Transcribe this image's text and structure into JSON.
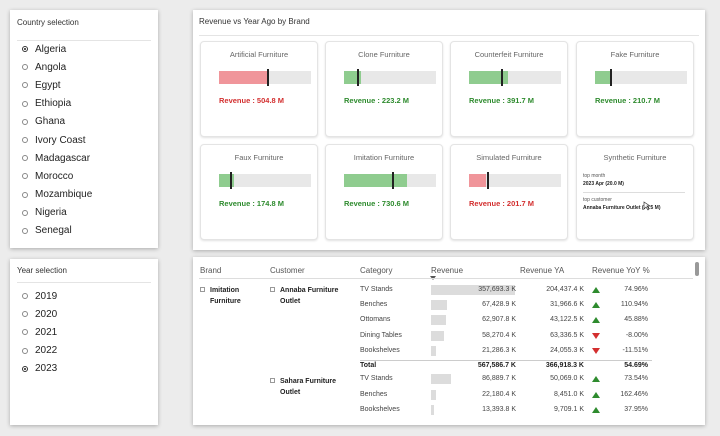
{
  "country_slicer": {
    "title": "Country selection",
    "items": [
      "Algeria",
      "Angola",
      "Egypt",
      "Ethiopia",
      "Ghana",
      "Ivory Coast",
      "Madagascar",
      "Morocco",
      "Mozambique",
      "Nigeria",
      "Senegal"
    ],
    "selected": "Algeria"
  },
  "year_slicer": {
    "title": "Year selection",
    "items": [
      "2019",
      "2020",
      "2021",
      "2022",
      "2023"
    ],
    "selected": "2023"
  },
  "brand_panel": {
    "title": "Revenue vs Year Ago by Brand",
    "cards": [
      {
        "name": "Artificial Furniture",
        "value_text": "Revenue : 504.8 M",
        "status": "down",
        "fill_fraction": 0.53,
        "target_fraction": 0.53
      },
      {
        "name": "Clone Furniture",
        "value_text": "Revenue : 223.2 M",
        "status": "up",
        "fill_fraction": 0.19,
        "target_fraction": 0.15
      },
      {
        "name": "Counterfeit Furniture",
        "value_text": "Revenue : 391.7 M",
        "status": "up",
        "fill_fraction": 0.42,
        "target_fraction": 0.36
      },
      {
        "name": "Fake Furniture",
        "value_text": "Revenue : 210.7 M",
        "status": "up",
        "fill_fraction": 0.19,
        "target_fraction": 0.17
      },
      {
        "name": "Faux Furniture",
        "value_text": "Revenue : 174.8 M",
        "status": "up",
        "fill_fraction": 0.16,
        "target_fraction": 0.13
      },
      {
        "name": "Imitation Furniture",
        "value_text": "Revenue : 730.6 M",
        "status": "up",
        "fill_fraction": 0.68,
        "target_fraction": 0.53
      },
      {
        "name": "Simulated Furniture",
        "value_text": "Revenue : 201.7 M",
        "status": "down",
        "fill_fraction": 0.18,
        "target_fraction": 0.21
      }
    ],
    "tooltip_card": {
      "name": "Synthetic Furniture",
      "top_month_label": "top month",
      "top_month_value": "2023 Apr (20.0 M)",
      "top_customer_label": "top customer",
      "top_customer_value": "Annaba Furniture Outlet (75.5 M)"
    }
  },
  "colors": {
    "up_bar": "#8fcc8f",
    "down_bar": "#f0959a",
    "up_text": "#2e8b2e",
    "down_text": "#d32f2f"
  },
  "matrix": {
    "headers": [
      "Brand",
      "Customer",
      "Category",
      "Revenue",
      "Revenue YA",
      "Revenue YoY %"
    ],
    "brand": "Imitation Furniture",
    "groups": [
      {
        "customer": "Annaba Furniture Outlet",
        "rows": [
          {
            "category": "TV Stands",
            "revenue": "357,693.3 K",
            "revenue_ya": "204,437.4 K",
            "yoy": "74.96%",
            "trend": "up",
            "bar_fraction": 1.0
          },
          {
            "category": "Benches",
            "revenue": "67,428.9 K",
            "revenue_ya": "31,966.6 K",
            "yoy": "110.94%",
            "trend": "up",
            "bar_fraction": 0.19
          },
          {
            "category": "Ottomans",
            "revenue": "62,907.8 K",
            "revenue_ya": "43,122.5 K",
            "yoy": "45.88%",
            "trend": "up",
            "bar_fraction": 0.18
          },
          {
            "category": "Dining Tables",
            "revenue": "58,270.4 K",
            "revenue_ya": "63,336.5 K",
            "yoy": "-8.00%",
            "trend": "down",
            "bar_fraction": 0.16
          },
          {
            "category": "Bookshelves",
            "revenue": "21,286.3 K",
            "revenue_ya": "24,055.3 K",
            "yoy": "-11.51%",
            "trend": "down",
            "bar_fraction": 0.06
          }
        ],
        "total": {
          "label": "Total",
          "revenue": "567,586.7 K",
          "revenue_ya": "366,918.3 K",
          "yoy": "54.69%"
        }
      },
      {
        "customer": "Sahara Furniture Outlet",
        "rows": [
          {
            "category": "TV Stands",
            "revenue": "86,889.7 K",
            "revenue_ya": "50,069.0 K",
            "yoy": "73.54%",
            "trend": "up",
            "bar_fraction": 0.24
          },
          {
            "category": "Benches",
            "revenue": "22,180.4 K",
            "revenue_ya": "8,451.0 K",
            "yoy": "162.46%",
            "trend": "up",
            "bar_fraction": 0.06
          },
          {
            "category": "Bookshelves",
            "revenue": "13,393.8 K",
            "revenue_ya": "9,709.1 K",
            "yoy": "37.95%",
            "trend": "up",
            "bar_fraction": 0.04
          }
        ]
      }
    ]
  }
}
